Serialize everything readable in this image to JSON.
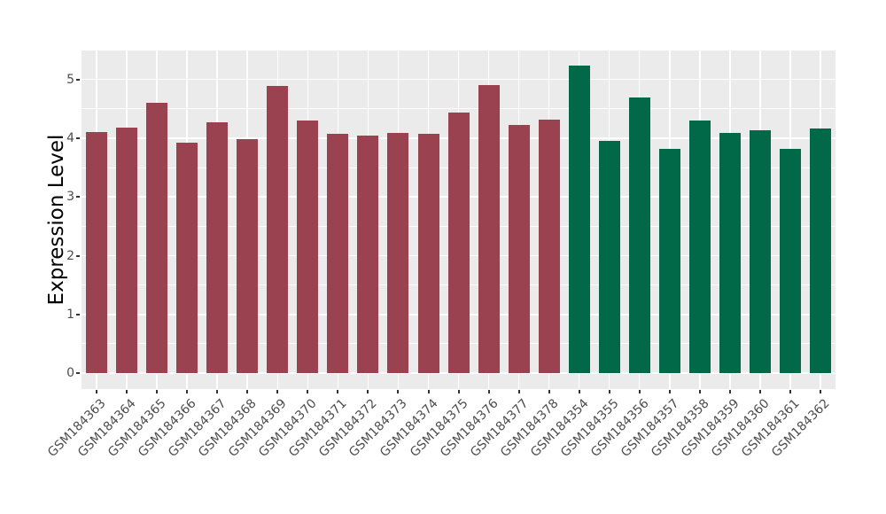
{
  "chart_data": {
    "type": "bar",
    "title": "",
    "ylabel": "Expression Level",
    "xlabel": "",
    "yticks": [
      0,
      1,
      2,
      3,
      4,
      5
    ],
    "ylim": [
      0,
      5.5
    ],
    "grid": true,
    "legend": "none",
    "categories": [
      "GSM184363",
      "GSM184364",
      "GSM184365",
      "GSM184366",
      "GSM184367",
      "GSM184368",
      "GSM184369",
      "GSM184370",
      "GSM184371",
      "GSM184372",
      "GSM184373",
      "GSM184374",
      "GSM184375",
      "GSM184376",
      "GSM184377",
      "GSM184378",
      "GSM184354",
      "GSM184355",
      "GSM184356",
      "GSM184357",
      "GSM184358",
      "GSM184359",
      "GSM184360",
      "GSM184361",
      "GSM184362"
    ],
    "values": [
      4.1,
      4.18,
      4.6,
      3.92,
      4.27,
      3.99,
      4.89,
      4.3,
      4.07,
      4.05,
      4.09,
      4.07,
      4.44,
      4.91,
      4.22,
      4.31,
      5.23,
      3.96,
      4.69,
      3.81,
      4.3,
      4.09,
      4.13,
      3.81,
      4.17
    ],
    "bar_group_index": [
      0,
      0,
      0,
      0,
      0,
      0,
      0,
      0,
      0,
      0,
      0,
      0,
      0,
      0,
      0,
      0,
      1,
      1,
      1,
      1,
      1,
      1,
      1,
      1,
      1
    ],
    "group_colors": [
      "#9A4250",
      "#016948"
    ]
  },
  "style": {
    "page_bg": "#FFFFFF",
    "panel_bg": "#EBEBEB",
    "grid_color": "#FFFFFF",
    "tick_mark_color": "#333333",
    "tick_label_color": "#4D4D4D",
    "axis_title_color": "#000000"
  }
}
